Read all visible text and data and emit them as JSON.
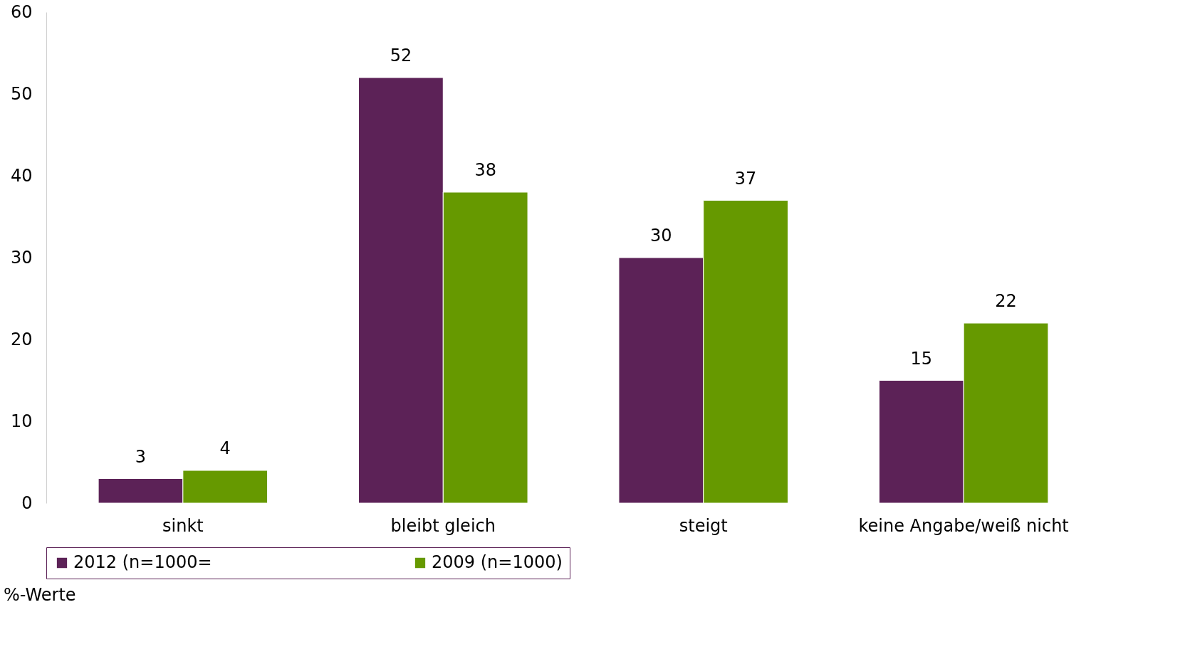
{
  "chart_data": {
    "type": "bar",
    "categories": [
      "sinkt",
      "bleibt gleich",
      "steigt",
      "keine Angabe/weiß nicht"
    ],
    "series": [
      {
        "name": "2012 (n=1000=",
        "color": "#5c2257",
        "values": [
          3,
          52,
          30,
          15
        ]
      },
      {
        "name": "2009 (n=1000)",
        "color": "#669900",
        "values": [
          4,
          38,
          37,
          22
        ]
      }
    ],
    "ylim": [
      0,
      60
    ],
    "yticks": [
      0,
      10,
      20,
      30,
      40,
      50,
      60
    ],
    "grid": false,
    "legend": "bottom",
    "data_labels": true,
    "annotations": [
      "%-Werte"
    ]
  }
}
